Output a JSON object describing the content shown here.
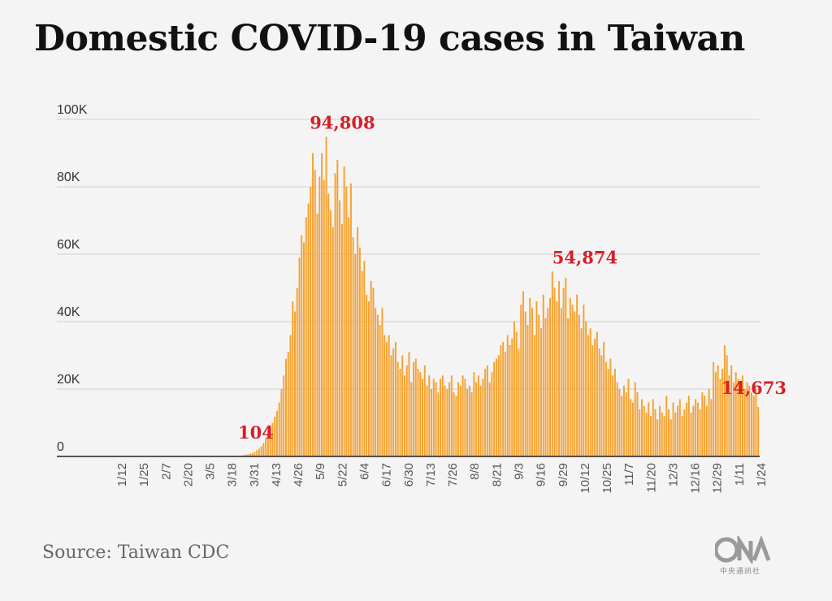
{
  "title": "Domestic COVID-19 cases in Taiwan",
  "source": "Source: Taiwan CDC",
  "logo": {
    "text": "中央通訊社",
    "icon": "cna-logo-icon"
  },
  "colors": {
    "bar": "#f7a231",
    "annotation": "#d81e2a",
    "grid": "#d0d0d0",
    "axis": "#222222"
  },
  "chart_data": {
    "type": "bar",
    "title": "Domestic COVID-19 cases in Taiwan",
    "xlabel": "",
    "ylabel": "",
    "ylim": [
      0,
      100000
    ],
    "grid": true,
    "yticks": [
      {
        "value": 0,
        "label": "0"
      },
      {
        "value": 20000,
        "label": "20K"
      },
      {
        "value": 40000,
        "label": "40K"
      },
      {
        "value": 60000,
        "label": "60K"
      },
      {
        "value": 80000,
        "label": "80K"
      },
      {
        "value": 100000,
        "label": "100K"
      }
    ],
    "xticks": [
      "1/12",
      "1/25",
      "2/7",
      "2/20",
      "3/5",
      "3/18",
      "3/31",
      "4/13",
      "4/26",
      "5/9",
      "5/22",
      "6/4",
      "6/17",
      "6/30",
      "7/13",
      "7/26",
      "8/8",
      "8/21",
      "9/3",
      "9/16",
      "9/29",
      "10/12",
      "10/25",
      "11/7",
      "11/20",
      "12/3",
      "12/16",
      "12/29",
      "1/11",
      "1/24"
    ],
    "annotations": [
      {
        "label": "104",
        "value": 104,
        "near_tick": "4/13"
      },
      {
        "label": "94,808",
        "value": 94808,
        "near_tick": "5/22"
      },
      {
        "label": "54,874",
        "value": 54874,
        "near_tick": "10/12"
      },
      {
        "label": "14,673",
        "value": 14673,
        "near_tick": "1/24"
      }
    ],
    "series": [
      {
        "values": [
          0,
          0,
          0,
          0,
          0,
          0,
          0,
          0,
          0,
          0,
          0,
          0,
          0,
          0,
          0,
          0,
          0,
          0,
          0,
          0,
          0,
          0,
          0,
          0,
          0,
          0,
          0,
          0,
          0,
          0,
          0,
          0,
          0,
          0,
          0,
          0,
          0,
          0,
          0,
          0,
          0,
          0,
          0,
          0,
          0,
          0,
          0,
          0,
          0,
          0,
          0,
          0,
          0,
          0,
          0,
          0,
          0,
          0,
          0,
          0,
          0,
          0,
          0,
          0,
          0,
          0,
          0,
          0,
          0,
          0,
          0,
          0,
          0,
          0,
          0,
          0,
          0,
          0,
          0,
          0,
          100,
          150,
          250,
          350,
          500,
          600,
          800,
          1000,
          1300,
          1800,
          2300,
          3000,
          4000,
          5300,
          7000,
          8500,
          10000,
          11800,
          13500,
          16000,
          20000,
          24000,
          29000,
          31000,
          36000,
          46000,
          43000,
          50000,
          59000,
          65600,
          63500,
          71000,
          75000,
          80000,
          90000,
          85000,
          72000,
          83000,
          90000,
          82000,
          94808,
          78000,
          73000,
          68000,
          84000,
          88000,
          76000,
          69000,
          86000,
          80000,
          71000,
          81000,
          65000,
          60000,
          68000,
          62000,
          55000,
          58000,
          48000,
          46000,
          52000,
          50000,
          44000,
          42000,
          39000,
          44000,
          36000,
          34000,
          36000,
          30000,
          32000,
          34000,
          28000,
          26000,
          30000,
          24000,
          27000,
          31000,
          22000,
          28000,
          29000,
          26000,
          25000,
          23000,
          27000,
          21000,
          24000,
          20000,
          23000,
          22000,
          19000,
          23000,
          24000,
          21000,
          20000,
          22000,
          24000,
          19000,
          18000,
          22000,
          21000,
          24000,
          23000,
          20000,
          21000,
          19000,
          25000,
          22000,
          24000,
          21000,
          23000,
          26000,
          27000,
          22000,
          25000,
          28000,
          29000,
          30000,
          33000,
          34000,
          31000,
          36000,
          33000,
          35000,
          40000,
          37000,
          32000,
          45000,
          49000,
          43000,
          39000,
          47000,
          44000,
          36000,
          46000,
          42000,
          38000,
          48000,
          41000,
          44000,
          47000,
          54874,
          50000,
          46000,
          52000,
          44000,
          50000,
          53000,
          41000,
          47000,
          45000,
          43000,
          48000,
          42000,
          38000,
          45000,
          40000,
          36000,
          38000,
          33000,
          35000,
          37000,
          32000,
          30000,
          34000,
          28000,
          26000,
          29000,
          24000,
          26000,
          22000,
          20000,
          18000,
          21000,
          19000,
          23000,
          17000,
          16000,
          22000,
          19000,
          14000,
          17000,
          15000,
          13000,
          16000,
          12000,
          17000,
          14000,
          11000,
          15000,
          13000,
          12000,
          18000,
          14000,
          11000,
          16000,
          13000,
          15000,
          17000,
          12000,
          14000,
          16000,
          18000,
          13000,
          15000,
          17000,
          16000,
          14000,
          19000,
          18000,
          15000,
          20000,
          17000,
          28000,
          25000,
          27000,
          23000,
          26000,
          33000,
          30000,
          24000,
          27000,
          22000,
          25000,
          23000,
          21000,
          24000,
          20000,
          22000,
          21000,
          19000,
          18000,
          20000,
          14673
        ]
      }
    ]
  }
}
